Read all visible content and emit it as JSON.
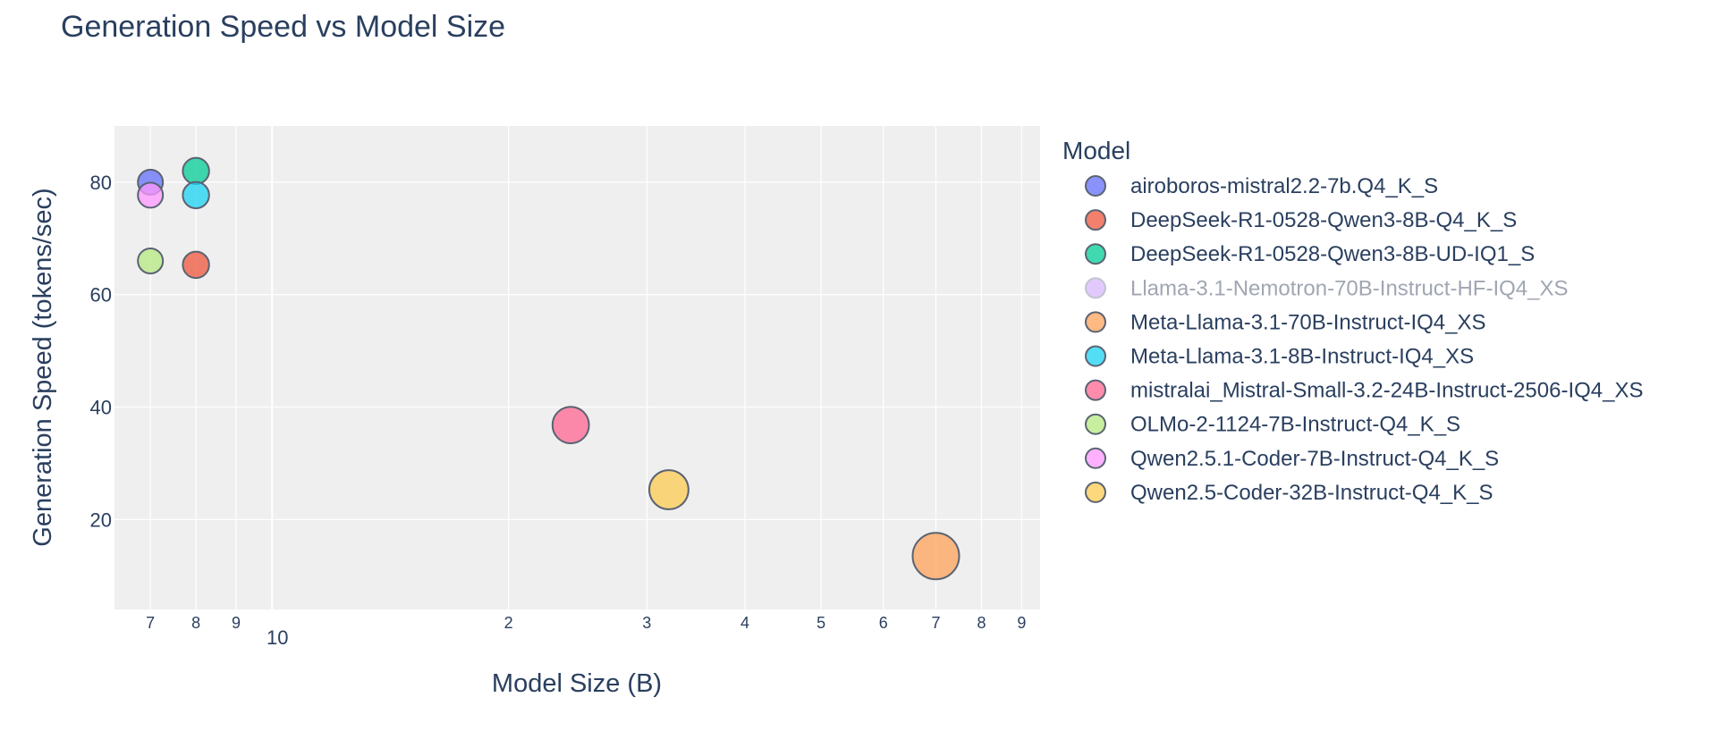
{
  "chart_data": {
    "type": "scatter",
    "title": "Generation Speed vs Model Size",
    "xlabel": "Model Size (B)",
    "ylabel": "Generation Speed (tokens/sec)",
    "x_scale": "log",
    "xlim": [
      6.3,
      95
    ],
    "ylim": [
      4,
      90
    ],
    "y_ticks": [
      20,
      40,
      60,
      80
    ],
    "x_ticks": [
      {
        "value": 7,
        "label": "7"
      },
      {
        "value": 8,
        "label": "8"
      },
      {
        "value": 9,
        "label": "9"
      },
      {
        "value": 10,
        "label": "10"
      },
      {
        "value": 20,
        "label": "2"
      },
      {
        "value": 30,
        "label": "3"
      },
      {
        "value": 40,
        "label": "4"
      },
      {
        "value": 50,
        "label": "5"
      },
      {
        "value": 60,
        "label": "6"
      },
      {
        "value": 70,
        "label": "7"
      },
      {
        "value": 80,
        "label": "8"
      },
      {
        "value": 90,
        "label": "9"
      }
    ],
    "legend_title": "Model",
    "legend_position": "right",
    "grid": true,
    "series": [
      {
        "name": "airoboros-mistral2.2-7b.Q4_K_S",
        "x": 7,
        "y": 80,
        "color": "#636efa",
        "visible": true
      },
      {
        "name": "DeepSeek-R1-0528-Qwen3-8B-Q4_K_S",
        "x": 8,
        "y": 65.3,
        "color": "#ef553b",
        "visible": true
      },
      {
        "name": "DeepSeek-R1-0528-Qwen3-8B-UD-IQ1_S",
        "x": 8,
        "y": 82,
        "color": "#00cc96",
        "visible": true
      },
      {
        "name": "Llama-3.1-Nemotron-70B-Instruct-HF-IQ4_XS",
        "x": 70,
        "y": null,
        "color": "#ab63fa",
        "visible": false
      },
      {
        "name": "Meta-Llama-3.1-70B-Instruct-IQ4_XS",
        "x": 70,
        "y": 13.5,
        "color": "#ffa15a",
        "visible": true
      },
      {
        "name": "Meta-Llama-3.1-8B-Instruct-IQ4_XS",
        "x": 8,
        "y": 77.7,
        "color": "#19d3f3",
        "visible": true
      },
      {
        "name": "mistralai_Mistral-Small-3.2-24B-Instruct-2506-IQ4_XS",
        "x": 24,
        "y": 36.8,
        "color": "#ff6692",
        "visible": true
      },
      {
        "name": "OLMo-2-1124-7B-Instruct-Q4_K_S",
        "x": 7,
        "y": 66,
        "color": "#b6e880",
        "visible": true
      },
      {
        "name": "Qwen2.5.1-Coder-7B-Instruct-Q4_K_S",
        "x": 7,
        "y": 77.7,
        "color": "#ff97ff",
        "visible": true
      },
      {
        "name": "Qwen2.5-Coder-32B-Instruct-Q4_K_S",
        "x": 32,
        "y": 25.3,
        "color": "#fecb52",
        "visible": true
      }
    ]
  }
}
